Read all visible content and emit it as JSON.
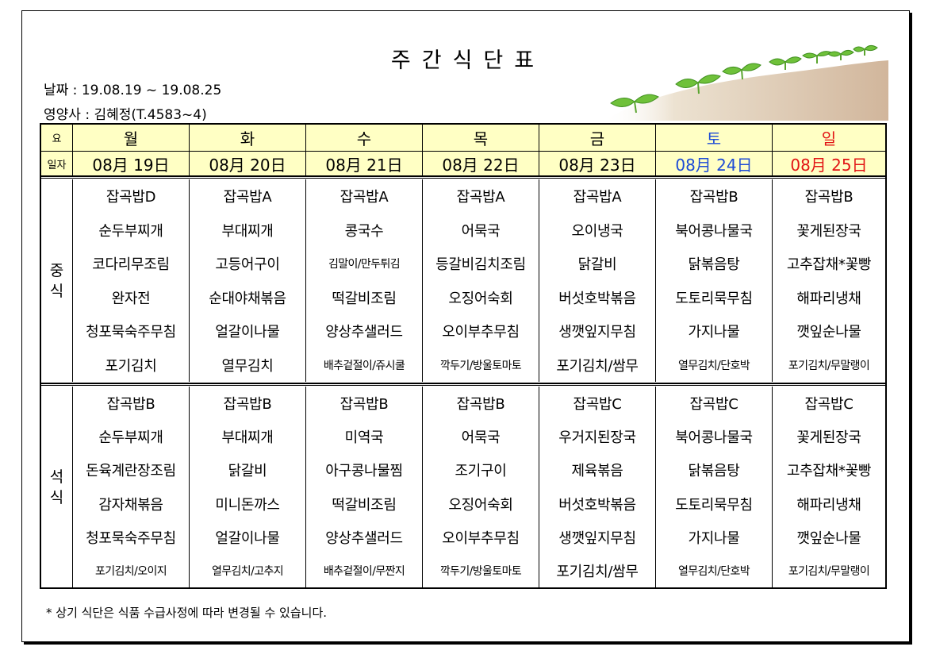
{
  "title": "주간식단표",
  "date_line": "날짜 : 19.08.19 ~ 19.08.25",
  "nutritionist_line": "영양사 : 김혜정(T.4583~4)",
  "header": {
    "day_label": "요",
    "date_label": "일자",
    "days": [
      "월",
      "화",
      "수",
      "목",
      "금",
      "토",
      "일"
    ],
    "dates": [
      "08月 19日",
      "08月 20日",
      "08月 21日",
      "08月 22日",
      "08月 23日",
      "08月 24日",
      "08月 25日"
    ],
    "sat_color": "#1d4bd6",
    "sun_color": "#e21414"
  },
  "lunch": {
    "label": "중식",
    "columns": [
      [
        "잡곡밥D",
        "순두부찌개",
        "코다리무조림",
        "완자전",
        "청포묵숙주무침",
        "포기김치"
      ],
      [
        "잡곡밥A",
        "부대찌개",
        "고등어구이",
        "순대야채볶음",
        "얼갈이나물",
        "열무김치"
      ],
      [
        "잡곡밥A",
        "콩국수",
        "김말이/만두튀김",
        "떡갈비조림",
        "양상추샐러드",
        "배추겉절이/쥬시쿨"
      ],
      [
        "잡곡밥A",
        "어묵국",
        "등갈비김치조림",
        "오징어숙회",
        "오이부추무침",
        "깍두기/방울토마토"
      ],
      [
        "잡곡밥A",
        "오이냉국",
        "닭갈비",
        "버섯호박볶음",
        "생깻잎지무침",
        "포기김치/쌈무"
      ],
      [
        "잡곡밥B",
        "북어콩나물국",
        "닭볶음탕",
        "도토리묵무침",
        "가지나물",
        "열무김치/단호박"
      ],
      [
        "잡곡밥B",
        "꽃게된장국",
        "고추잡채*꽃빵",
        "해파리냉채",
        "깻잎순나물",
        "포기김치/무말랭이"
      ]
    ]
  },
  "dinner": {
    "label": "석식",
    "columns": [
      [
        "잡곡밥B",
        "순두부찌개",
        "돈육계란장조림",
        "감자채볶음",
        "청포묵숙주무침",
        "포기김치/오이지"
      ],
      [
        "잡곡밥B",
        "부대찌개",
        "닭갈비",
        "미니돈까스",
        "얼갈이나물",
        "열무김치/고추지"
      ],
      [
        "잡곡밥B",
        "미역국",
        "아구콩나물찜",
        "떡갈비조림",
        "양상추샐러드",
        "배추겉절이/무짠지"
      ],
      [
        "잡곡밥B",
        "어묵국",
        "조기구이",
        "오징어숙회",
        "오이부추무침",
        "깍두기/방울토마토"
      ],
      [
        "잡곡밥C",
        "우거지된장국",
        "제육볶음",
        "버섯호박볶음",
        "생깻잎지무침",
        "포기김치/쌈무"
      ],
      [
        "잡곡밥C",
        "북어콩나물국",
        "닭볶음탕",
        "도토리묵무침",
        "가지나물",
        "열무김치/단호박"
      ],
      [
        "잡곡밥C",
        "꽃게된장국",
        "고추잡채*꽃빵",
        "해파리냉채",
        "깻잎순나물",
        "포기김치/무말랭이"
      ]
    ]
  },
  "note": "* 상기 식단은 식품 수급사정에 따라 변경될 수 있습니다."
}
